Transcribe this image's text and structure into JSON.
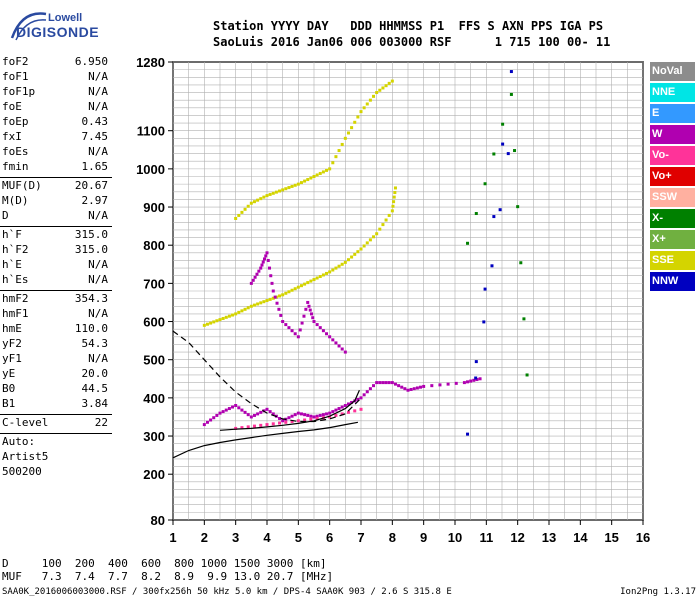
{
  "logo": {
    "brand_top": "Lowell",
    "brand_main": "DIGISONDE"
  },
  "header": {
    "line1": "Station YYYY DAY   DDD HHMMSS P1  FFS S AXN PPS IGA PS",
    "line2": "SaoLuis 2016 Jan06 006 003000 RSF      1 715 100 00- 11"
  },
  "params_group1": [
    {
      "name": "foF2",
      "value": "6.950"
    },
    {
      "name": "foF1",
      "value": "N/A"
    },
    {
      "name": "foF1p",
      "value": "N/A"
    },
    {
      "name": "foE",
      "value": "N/A"
    },
    {
      "name": "foEp",
      "value": "0.43"
    },
    {
      "name": "fxI",
      "value": "7.45"
    },
    {
      "name": "foEs",
      "value": "N/A"
    },
    {
      "name": "fmin",
      "value": "1.65"
    }
  ],
  "params_group2": [
    {
      "name": "MUF(D)",
      "value": "20.67"
    },
    {
      "name": "M(D)",
      "value": "2.97"
    },
    {
      "name": "D",
      "value": "N/A"
    }
  ],
  "params_group3": [
    {
      "name": "h`F",
      "value": "315.0"
    },
    {
      "name": "h`F2",
      "value": "315.0"
    },
    {
      "name": "h`E",
      "value": "N/A"
    },
    {
      "name": "h`Es",
      "value": "N/A"
    }
  ],
  "params_group4": [
    {
      "name": "hmF2",
      "value": "354.3"
    },
    {
      "name": "hmF1",
      "value": "N/A"
    },
    {
      "name": "hmE",
      "value": "110.0"
    },
    {
      "name": "yF2",
      "value": "54.3"
    },
    {
      "name": "yF1",
      "value": "N/A"
    },
    {
      "name": "yE",
      "value": "20.0"
    },
    {
      "name": "B0",
      "value": "44.5"
    },
    {
      "name": "B1",
      "value": "3.84"
    }
  ],
  "params_group5": [
    {
      "name": "C-level",
      "value": "22"
    }
  ],
  "auto_text": [
    "Auto:",
    "Artist5",
    "500200"
  ],
  "muf_table": {
    "d_row": "D     100  200  400  600  800 1000 1500 3000 [km]",
    "muf_row": "MUF   7.3  7.4  7.7  8.2  8.9  9.9 13.0 20.7 [MHz]"
  },
  "footer": {
    "left": "SAA0K_2016006003000.RSF / 300fx256h 50 kHz 5.0 km / DPS-4 SAA0K 903 / 2.6 S 315.8 E",
    "right": "Ion2Png 1.3.17"
  },
  "legend": [
    {
      "label": "NoVal",
      "color": "#8c8c8c"
    },
    {
      "label": "NNE",
      "color": "#00e5e5"
    },
    {
      "label": "E",
      "color": "#3399ff"
    },
    {
      "label": "W",
      "color": "#b000b0"
    },
    {
      "label": "Vo-",
      "color": "#ff3399"
    },
    {
      "label": "Vo+",
      "color": "#e00000"
    },
    {
      "label": "SSW",
      "color": "#ffb0a0"
    },
    {
      "label": "X-",
      "color": "#008000"
    },
    {
      "label": "X+",
      "color": "#70b040"
    },
    {
      "label": "SSE",
      "color": "#d4d400"
    },
    {
      "label": "NNW",
      "color": "#0000c0"
    }
  ],
  "chart_data": {
    "type": "scatter",
    "xlim": [
      1,
      16
    ],
    "ylim": [
      80,
      1280
    ],
    "x_ticks": [
      "1",
      "2",
      "3",
      "4",
      "5",
      "6",
      "7",
      "8",
      "9",
      "10",
      "11",
      "12",
      "13",
      "14",
      "15",
      "16"
    ],
    "y_ticks": [
      "80",
      "200",
      "300",
      "400",
      "500",
      "600",
      "700",
      "800",
      "900",
      "1000",
      "1100",
      "1280"
    ],
    "grid": true,
    "series": [
      {
        "name": "SSE",
        "color": "#d4d400",
        "points": [
          [
            2.0,
            590
          ],
          [
            2.5,
            605
          ],
          [
            3.0,
            620
          ],
          [
            3.5,
            640
          ],
          [
            4.0,
            655
          ],
          [
            4.5,
            670
          ],
          [
            5.0,
            690
          ],
          [
            5.5,
            710
          ],
          [
            6.0,
            730
          ],
          [
            6.5,
            755
          ],
          [
            7.0,
            790
          ],
          [
            7.5,
            830
          ],
          [
            8.0,
            890
          ],
          [
            8.1,
            950
          ]
        ]
      },
      {
        "name": "SSE",
        "color": "#d4d400",
        "points": [
          [
            3.0,
            870
          ],
          [
            3.5,
            910
          ],
          [
            4.0,
            930
          ],
          [
            4.5,
            945
          ],
          [
            5.0,
            960
          ],
          [
            5.5,
            980
          ],
          [
            6.0,
            1000
          ],
          [
            6.5,
            1080
          ],
          [
            7.0,
            1150
          ],
          [
            7.5,
            1200
          ],
          [
            8.0,
            1230
          ]
        ]
      },
      {
        "name": "W",
        "color": "#b000b0",
        "points": [
          [
            2.0,
            330
          ],
          [
            2.5,
            360
          ],
          [
            3.0,
            380
          ],
          [
            3.5,
            350
          ],
          [
            4.0,
            370
          ],
          [
            4.5,
            340
          ],
          [
            5.0,
            360
          ],
          [
            5.5,
            350
          ],
          [
            6.0,
            360
          ],
          [
            6.5,
            380
          ],
          [
            7.0,
            400
          ],
          [
            7.5,
            440
          ],
          [
            8.0,
            440
          ],
          [
            8.5,
            420
          ],
          [
            9.0,
            430
          ],
          [
            10.3,
            440
          ],
          [
            10.8,
            450
          ]
        ]
      },
      {
        "name": "W",
        "color": "#b000b0",
        "points": [
          [
            3.5,
            700
          ],
          [
            3.8,
            740
          ],
          [
            4.0,
            780
          ],
          [
            4.2,
            680
          ],
          [
            4.5,
            600
          ],
          [
            5.0,
            560
          ],
          [
            5.3,
            650
          ],
          [
            5.5,
            600
          ],
          [
            6.0,
            560
          ],
          [
            6.5,
            520
          ]
        ]
      },
      {
        "name": "NNW",
        "color": "#0000c0",
        "points": [
          [
            11.7,
            1040
          ],
          [
            10.4,
            305
          ],
          [
            11.8,
            1255
          ]
        ]
      },
      {
        "name": "X-",
        "color": "#008000",
        "points": [
          [
            10.4,
            805
          ],
          [
            11.8,
            1195
          ],
          [
            12.3,
            460
          ]
        ]
      },
      {
        "name": "Vo-",
        "color": "#ff3399",
        "points": [
          [
            3.0,
            320
          ],
          [
            4.0,
            330
          ],
          [
            5.0,
            340
          ],
          [
            6.0,
            350
          ],
          [
            7.0,
            370
          ]
        ]
      }
    ],
    "model_lines": [
      {
        "name": "",
        "style": "dashed",
        "points": [
          [
            1.0,
            575
          ],
          [
            1.5,
            545
          ],
          [
            2.0,
            500
          ],
          [
            2.5,
            455
          ],
          [
            3.0,
            415
          ],
          [
            3.5,
            385
          ],
          [
            4.0,
            360
          ],
          [
            4.5,
            345
          ],
          [
            5.0,
            338
          ],
          [
            5.5,
            338
          ],
          [
            6.0,
            345
          ],
          [
            6.5,
            358
          ],
          [
            6.95,
            395
          ]
        ]
      },
      {
        "name": "",
        "style": "solid",
        "points": [
          [
            1.0,
            243
          ],
          [
            1.5,
            262
          ],
          [
            2.0,
            275
          ],
          [
            2.5,
            283
          ],
          [
            3.0,
            290
          ],
          [
            3.5,
            296
          ],
          [
            4.0,
            302
          ],
          [
            4.5,
            307
          ],
          [
            5.0,
            312
          ],
          [
            5.5,
            316
          ],
          [
            6.0,
            322
          ],
          [
            6.5,
            330
          ],
          [
            6.9,
            336
          ]
        ]
      },
      {
        "name": "",
        "style": "solid",
        "points": [
          [
            2.5,
            315
          ],
          [
            3.0,
            318
          ],
          [
            3.5,
            320
          ],
          [
            4.0,
            324
          ],
          [
            4.5,
            328
          ],
          [
            5.0,
            333
          ],
          [
            5.5,
            340
          ],
          [
            6.0,
            352
          ],
          [
            6.5,
            372
          ],
          [
            6.8,
            392
          ],
          [
            6.95,
            420
          ]
        ]
      }
    ]
  }
}
